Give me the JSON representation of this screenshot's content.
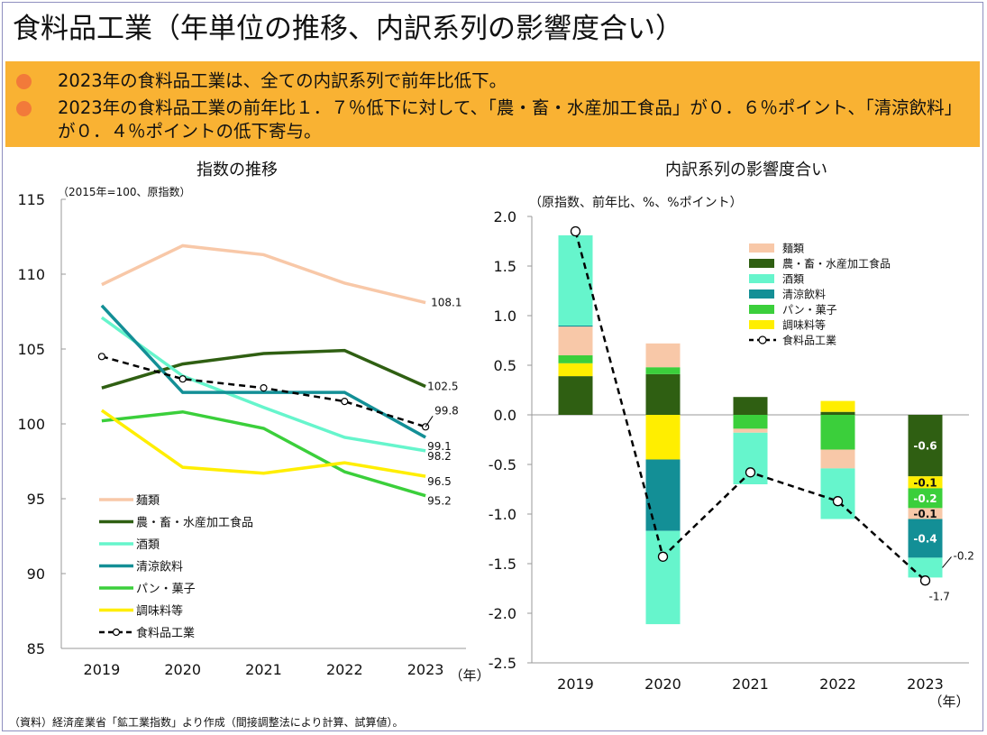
{
  "title": "食料品工業（年単位の推移、内訳系列の影響度合い）",
  "summary": [
    "2023年の食料品工業は、全ての内訳系列で前年比低下。",
    "2023年の食料品工業の前年比１．７％低下に対して、「農・畜・水産加工食品」が０．６％ポイント、「清涼飲料」が０．４％ポイントの低下寄与。"
  ],
  "source_note": "（資料）経済産業省「鉱工業指数」より作成（間接調整法により計算、試算値）。",
  "colors": {
    "menrui": "#f8c8a8",
    "nochiku": "#2f5f12",
    "sake": "#66f5cc",
    "seiryo": "#138f96",
    "pan": "#3bcf3b",
    "chomi": "#ffee00",
    "total": "#000000"
  },
  "chart_data": [
    {
      "type": "line",
      "title": "指数の推移",
      "unit_note": "（2015年=100、原指数）",
      "x": [
        "2019",
        "2020",
        "2021",
        "2022",
        "2023"
      ],
      "xlabel": "（年）",
      "ylim": [
        85,
        115
      ],
      "yticks": [
        "85",
        "90",
        "95",
        "100",
        "105",
        "110",
        "115"
      ],
      "grid": false,
      "series": [
        {
          "key": "menrui",
          "name": "麺類",
          "values": [
            109.3,
            111.9,
            111.3,
            109.4,
            108.1
          ],
          "end_label": "108.1"
        },
        {
          "key": "nochiku",
          "name": "農・畜・水産加工食品",
          "values": [
            102.4,
            104.0,
            104.7,
            104.9,
            102.5
          ],
          "end_label": "102.5"
        },
        {
          "key": "sake",
          "name": "酒類",
          "values": [
            107.1,
            103.2,
            101.1,
            99.1,
            98.2
          ],
          "end_label": "98.2"
        },
        {
          "key": "seiryo",
          "name": "清涼飲料",
          "values": [
            107.9,
            102.1,
            102.1,
            102.1,
            99.1
          ],
          "end_label": "99.1"
        },
        {
          "key": "pan",
          "name": "パン・菓子",
          "values": [
            100.2,
            100.8,
            99.7,
            96.8,
            95.2
          ],
          "end_label": "95.2"
        },
        {
          "key": "chomi",
          "name": "調味料等",
          "values": [
            100.9,
            97.1,
            96.7,
            97.4,
            96.5
          ],
          "end_label": "96.5"
        },
        {
          "key": "total",
          "name": "食料品工業",
          "values": [
            104.5,
            103.0,
            102.4,
            101.5,
            99.8
          ],
          "end_label": "99.8"
        }
      ]
    },
    {
      "type": "bar",
      "stacked": true,
      "title": "内訳系列の影響度合い",
      "unit_note": "（原指数、前年比、%、%ポイント）",
      "categories": [
        "2019",
        "2020",
        "2021",
        "2022",
        "2023"
      ],
      "xlabel": "（年）",
      "ylim": [
        -2.5,
        2.0
      ],
      "yticks": [
        "-2.5",
        "-2.0",
        "-1.5",
        "-1.0",
        "-0.5",
        "0.0",
        "0.5",
        "1.0",
        "1.5",
        "2.0"
      ],
      "legend_position": "top-right",
      "series": [
        {
          "key": "nochiku",
          "name": "農・畜・水産加工食品",
          "values": [
            0.39,
            0.41,
            0.18,
            0.03,
            -0.62
          ]
        },
        {
          "key": "chomi",
          "name": "調味料等",
          "values": [
            0.13,
            -0.45,
            0.0,
            0.11,
            -0.12
          ]
        },
        {
          "key": "pan",
          "name": "パン・菓子",
          "values": [
            0.08,
            0.07,
            -0.14,
            -0.35,
            -0.2
          ]
        },
        {
          "key": "menrui",
          "name": "麺類",
          "values": [
            0.29,
            0.24,
            -0.04,
            -0.19,
            -0.11
          ]
        },
        {
          "key": "seiryo",
          "name": "清涼飲料",
          "values": [
            0.01,
            -0.72,
            0.0,
            0.0,
            -0.39
          ]
        },
        {
          "key": "sake",
          "name": "酒類",
          "values": [
            0.91,
            -0.94,
            -0.52,
            -0.51,
            -0.2
          ]
        }
      ],
      "total": {
        "key": "total",
        "name": "食料品工業",
        "values": [
          1.85,
          -1.43,
          -0.58,
          -0.87,
          -1.67
        ]
      },
      "bar_labels_2023": [
        {
          "key": "nochiku",
          "text": "-0.6"
        },
        {
          "key": "chomi",
          "text": "-0.1"
        },
        {
          "key": "pan",
          "text": "-0.2"
        },
        {
          "key": "menrui",
          "text": "-0.1"
        },
        {
          "key": "seiryo",
          "text": "-0.4"
        },
        {
          "key": "sake",
          "text": "-0.2"
        },
        {
          "key": "total",
          "text": "-1.7"
        }
      ],
      "legend_order": [
        "menrui",
        "nochiku",
        "sake",
        "seiryo",
        "pan",
        "chomi",
        "total"
      ]
    }
  ]
}
